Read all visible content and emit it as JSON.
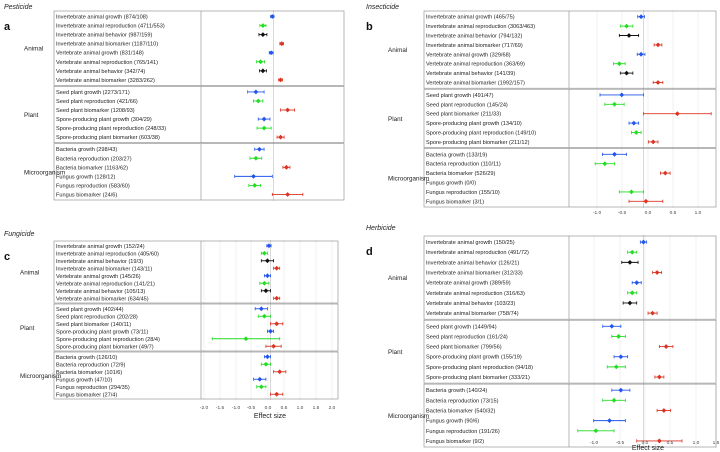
{
  "figure": {
    "xlabel": "Effect size",
    "colors": {
      "negative": "#22dd22",
      "positive": "#dd3322",
      "neutral": "#111111",
      "growth": "#2255ee",
      "frame": "#888888",
      "grid": "#e6e6e6",
      "zero": "#cfcfcf"
    }
  },
  "chart_data": [
    {
      "type": "forest",
      "panel": "a",
      "title": "Pesticide",
      "xlim": [
        -3,
        3
      ],
      "xticks": [],
      "groups": [
        {
          "label": "Animal",
          "items": [
            {
              "label": "Invertebrate animal growth (874/108)",
              "mean": -0.05,
              "lo": -0.12,
              "hi": 0.02,
              "color": "growth"
            },
            {
              "label": "Invertebrate animal reproduction (4711/553)",
              "mean": -0.45,
              "lo": -0.58,
              "hi": -0.32,
              "color": "negative"
            },
            {
              "label": "Invertebrate animal behavior (987/159)",
              "mean": -0.45,
              "lo": -0.62,
              "hi": -0.28,
              "color": "neutral"
            },
            {
              "label": "Invertebrate animal biomarker (1187/110)",
              "mean": 0.35,
              "lo": 0.27,
              "hi": 0.43,
              "color": "positive"
            },
            {
              "label": "Vertebrate animal growth (831/148)",
              "mean": -0.1,
              "lo": -0.18,
              "hi": -0.02,
              "color": "growth"
            },
            {
              "label": "Vertebrate animal reproduction (765/141)",
              "mean": -0.55,
              "lo": -0.72,
              "hi": -0.38,
              "color": "negative"
            },
            {
              "label": "Vertebrate animal behavior (342/74)",
              "mean": -0.45,
              "lo": -0.6,
              "hi": -0.3,
              "color": "neutral"
            },
            {
              "label": "Vertebrate animal biomarker (3283/262)",
              "mean": 0.3,
              "lo": 0.22,
              "hi": 0.38,
              "color": "positive"
            }
          ]
        },
        {
          "label": "Plant",
          "items": [
            {
              "label": "Seed plant growth (2273/171)",
              "mean": -0.75,
              "lo": -1.1,
              "hi": -0.4,
              "color": "growth"
            },
            {
              "label": "Seed plant reproduction (421/66)",
              "mean": -0.65,
              "lo": -0.85,
              "hi": -0.45,
              "color": "negative"
            },
            {
              "label": "Seed plant biomarker (1208/93)",
              "mean": 0.6,
              "lo": 0.3,
              "hi": 0.9,
              "color": "positive"
            },
            {
              "label": "Spore-producing plant growth (304/29)",
              "mean": -0.4,
              "lo": -0.65,
              "hi": -0.15,
              "color": "growth"
            },
            {
              "label": "Spore-producing plant reproduction (248/33)",
              "mean": -0.4,
              "lo": -0.7,
              "hi": -0.1,
              "color": "negative"
            },
            {
              "label": "Spore-producing plant biomarker (603/38)",
              "mean": 0.3,
              "lo": 0.15,
              "hi": 0.45,
              "color": "positive"
            }
          ]
        },
        {
          "label": "Microorganism",
          "items": [
            {
              "label": "Bacteria growth (298/43)",
              "mean": -0.6,
              "lo": -0.8,
              "hi": -0.4,
              "color": "growth"
            },
            {
              "label": "Bacteria reproduction (203/27)",
              "mean": -0.75,
              "lo": -1.0,
              "hi": -0.5,
              "color": "negative"
            },
            {
              "label": "Bacteria biomarker (1163/62)",
              "mean": 0.55,
              "lo": 0.4,
              "hi": 0.7,
              "color": "positive"
            },
            {
              "label": "Fungus growth (128/12)",
              "mean": -0.85,
              "lo": -1.65,
              "hi": -0.05,
              "color": "growth"
            },
            {
              "label": "Fungus reproduction (583/60)",
              "mean": -0.8,
              "lo": -1.05,
              "hi": -0.55,
              "color": "negative"
            },
            {
              "label": "Fungus biomarker (24/6)",
              "mean": 0.6,
              "lo": -0.05,
              "hi": 1.25,
              "color": "positive"
            }
          ]
        }
      ]
    },
    {
      "type": "forest",
      "panel": "b",
      "title": "Insecticide",
      "xlim": [
        -1.5,
        1.5
      ],
      "xticks": [
        "-1.0",
        "-0.5",
        "0.0",
        "0.5",
        "1.0"
      ],
      "groups": [
        {
          "label": "Animal",
          "items": [
            {
              "label": "Invertebrate animal growth (465/75)",
              "mean": -0.05,
              "lo": -0.12,
              "hi": 0.02,
              "color": "growth"
            },
            {
              "label": "Invertebrate animal reproduction (3063/463)",
              "mean": -0.35,
              "lo": -0.48,
              "hi": -0.22,
              "color": "negative"
            },
            {
              "label": "Invertebrate animal behavior (794/132)",
              "mean": -0.3,
              "lo": -0.5,
              "hi": -0.1,
              "color": "neutral"
            },
            {
              "label": "Invertebrate animal biomarker (717/69)",
              "mean": 0.3,
              "lo": 0.22,
              "hi": 0.38,
              "color": "positive"
            },
            {
              "label": "Vertebrate animal growth (329/68)",
              "mean": -0.05,
              "lo": -0.13,
              "hi": 0.03,
              "color": "growth"
            },
            {
              "label": "Vertebrate animal reproduction (363/69)",
              "mean": -0.5,
              "lo": -0.62,
              "hi": -0.38,
              "color": "negative"
            },
            {
              "label": "Vertebrate animal behavior (141/39)",
              "mean": -0.35,
              "lo": -0.48,
              "hi": -0.22,
              "color": "neutral"
            },
            {
              "label": "Vertebrate animal biomarker (1992/157)",
              "mean": 0.3,
              "lo": 0.2,
              "hi": 0.4,
              "color": "positive"
            }
          ]
        },
        {
          "label": "Plant",
          "items": [
            {
              "label": "Seed plant growth (491/47)",
              "mean": -0.45,
              "lo": -0.9,
              "hi": 0.0,
              "color": "growth"
            },
            {
              "label": "Seed plant reproduction (145/24)",
              "mean": -0.6,
              "lo": -0.8,
              "hi": -0.4,
              "color": "negative"
            },
            {
              "label": "Seed plant biomarker (211/33)",
              "mean": 0.7,
              "lo": 0.0,
              "hi": 1.4,
              "color": "positive"
            },
            {
              "label": "Spore-producing plant growth (134/10)",
              "mean": -0.2,
              "lo": -0.3,
              "hi": -0.1,
              "color": "growth"
            },
            {
              "label": "Spore-producing plant reproduction (149/10)",
              "mean": -0.15,
              "lo": -0.25,
              "hi": -0.05,
              "color": "negative"
            },
            {
              "label": "Spore-producing plant biomarker (211/12)",
              "mean": 0.2,
              "lo": 0.1,
              "hi": 0.3,
              "color": "positive"
            }
          ]
        },
        {
          "label": "Microorganism",
          "items": [
            {
              "label": "Bacteria growth (133/19)",
              "mean": -0.6,
              "lo": -0.85,
              "hi": -0.35,
              "color": "growth"
            },
            {
              "label": "Bacteria reproduction (110/11)",
              "mean": -0.8,
              "lo": -1.0,
              "hi": -0.6,
              "color": "negative"
            },
            {
              "label": "Bacteria biomarker (526/29)",
              "mean": 0.45,
              "lo": 0.35,
              "hi": 0.55,
              "color": "positive"
            },
            {
              "label": "Fungus growth (0/0)",
              "mean": null,
              "lo": null,
              "hi": null,
              "color": "growth"
            },
            {
              "label": "Fungus reproduction (155/10)",
              "mean": -0.25,
              "lo": -0.5,
              "hi": 0.0,
              "color": "negative"
            },
            {
              "label": "Fungus biomarker (3/1)",
              "mean": 0.05,
              "lo": -0.3,
              "hi": 0.4,
              "color": "positive"
            }
          ]
        }
      ]
    },
    {
      "type": "forest",
      "panel": "c",
      "title": "Fungicide",
      "xlim": [
        -2.2,
        2.2
      ],
      "xticks": [
        "-2.0",
        "-1.5",
        "-1.0",
        "-0.5",
        "0.0",
        "0.5",
        "1.0",
        "1.5",
        "2.0"
      ],
      "groups": [
        {
          "label": "Animal",
          "items": [
            {
              "label": "Invertebrate animal growth (152/24)",
              "mean": -0.05,
              "lo": -0.12,
              "hi": 0.02,
              "color": "growth"
            },
            {
              "label": "Invertebrate animal reproduction (405/60)",
              "mean": -0.2,
              "lo": -0.3,
              "hi": -0.1,
              "color": "negative"
            },
            {
              "label": "Invertebrate animal behavior (19/3)",
              "mean": -0.1,
              "lo": -0.3,
              "hi": 0.1,
              "color": "neutral"
            },
            {
              "label": "Invertebrate animal biomarker (143/11)",
              "mean": 0.2,
              "lo": 0.1,
              "hi": 0.3,
              "color": "positive"
            },
            {
              "label": "Vertebrate animal growth (145/26)",
              "mean": -0.1,
              "lo": -0.2,
              "hi": 0.0,
              "color": "growth"
            },
            {
              "label": "Vertebrate animal reproduction (141/21)",
              "mean": -0.2,
              "lo": -0.35,
              "hi": -0.05,
              "color": "negative"
            },
            {
              "label": "Vertebrate animal behavior (105/13)",
              "mean": -0.15,
              "lo": -0.3,
              "hi": 0.0,
              "color": "neutral"
            },
            {
              "label": "Vertebrate animal biomarker (634/45)",
              "mean": 0.2,
              "lo": 0.1,
              "hi": 0.3,
              "color": "positive"
            }
          ]
        },
        {
          "label": "Plant",
          "items": [
            {
              "label": "Seed plant growth (402/44)",
              "mean": -0.3,
              "lo": -0.5,
              "hi": -0.1,
              "color": "growth"
            },
            {
              "label": "Seed plant reproduction (202/28)",
              "mean": -0.2,
              "lo": -0.4,
              "hi": 0.0,
              "color": "negative"
            },
            {
              "label": "Seed plant biomarker (140/11)",
              "mean": 0.2,
              "lo": 0.0,
              "hi": 0.4,
              "color": "positive"
            },
            {
              "label": "Spore-producing plant growth (73/11)",
              "mean": 0.0,
              "lo": -0.1,
              "hi": 0.1,
              "color": "growth"
            },
            {
              "label": "Spore-producing plant reproduction (28/4)",
              "mean": -0.8,
              "lo": -1.9,
              "hi": 0.3,
              "color": "negative"
            },
            {
              "label": "Spore-producing plant biomarker (49/7)",
              "mean": 0.1,
              "lo": -0.15,
              "hi": 0.35,
              "color": "positive"
            }
          ]
        },
        {
          "label": "Microorganism",
          "items": [
            {
              "label": "Bacteria growth (126/10)",
              "mean": -0.1,
              "lo": -0.2,
              "hi": 0.0,
              "color": "growth"
            },
            {
              "label": "Bacteria reproduction (72/9)",
              "mean": -0.15,
              "lo": -0.3,
              "hi": 0.0,
              "color": "negative"
            },
            {
              "label": "Bacteria biomarker (101/6)",
              "mean": 0.3,
              "lo": 0.1,
              "hi": 0.5,
              "color": "positive"
            },
            {
              "label": "Fungus growth (47/10)",
              "mean": -0.35,
              "lo": -0.55,
              "hi": -0.15,
              "color": "growth"
            },
            {
              "label": "Fungus reproduction (294/35)",
              "mean": -0.3,
              "lo": -0.45,
              "hi": -0.15,
              "color": "negative"
            },
            {
              "label": "Fungus biomarker (27/4)",
              "mean": 0.2,
              "lo": 0.0,
              "hi": 0.4,
              "color": "positive"
            }
          ]
        }
      ]
    },
    {
      "type": "forest",
      "panel": "d",
      "title": "Herbicide",
      "xlim": [
        -1.6,
        1.6
      ],
      "xticks": [
        "-1.0",
        "-0.5",
        "0.0",
        "0.5",
        "1.0",
        "1.5"
      ],
      "groups": [
        {
          "label": "Animal",
          "items": [
            {
              "label": "Invertebrate animal growth (150/25)",
              "mean": 0.0,
              "lo": -0.07,
              "hi": 0.07,
              "color": "growth"
            },
            {
              "label": "Invertebrate animal reproduction (491/72)",
              "mean": -0.25,
              "lo": -0.35,
              "hi": -0.15,
              "color": "negative"
            },
            {
              "label": "Invertebrate animal behavior (126/21)",
              "mean": -0.3,
              "lo": -0.48,
              "hi": -0.12,
              "color": "neutral"
            },
            {
              "label": "Invertebrate animal biomarker (312/33)",
              "mean": 0.3,
              "lo": 0.2,
              "hi": 0.4,
              "color": "positive"
            },
            {
              "label": "Vertebrate animal growth (389/59)",
              "mean": -0.15,
              "lo": -0.25,
              "hi": -0.05,
              "color": "growth"
            },
            {
              "label": "Vertebrate animal reproduction (316/63)",
              "mean": -0.25,
              "lo": -0.35,
              "hi": -0.15,
              "color": "negative"
            },
            {
              "label": "Vertebrate animal behavior (103/23)",
              "mean": -0.3,
              "lo": -0.45,
              "hi": -0.15,
              "color": "neutral"
            },
            {
              "label": "Vertebrate animal biomarker (758/74)",
              "mean": 0.2,
              "lo": 0.1,
              "hi": 0.3,
              "color": "positive"
            }
          ]
        },
        {
          "label": "Plant",
          "items": [
            {
              "label": "Seed plant growth (1449/94)",
              "mean": -0.7,
              "lo": -0.9,
              "hi": -0.5,
              "color": "growth"
            },
            {
              "label": "Seed plant reproduction (161/24)",
              "mean": -0.55,
              "lo": -0.7,
              "hi": -0.4,
              "color": "negative"
            },
            {
              "label": "Seed plant biomarker (799/56)",
              "mean": 0.5,
              "lo": 0.35,
              "hi": 0.65,
              "color": "positive"
            },
            {
              "label": "Spore-producing plant growth (155/19)",
              "mean": -0.5,
              "lo": -0.65,
              "hi": -0.35,
              "color": "growth"
            },
            {
              "label": "Spore-producing plant reproduction (94/18)",
              "mean": -0.6,
              "lo": -0.8,
              "hi": -0.4,
              "color": "negative"
            },
            {
              "label": "Spore-producing plant biomarker (333/21)",
              "mean": 0.35,
              "lo": 0.25,
              "hi": 0.45,
              "color": "positive"
            }
          ]
        },
        {
          "label": "Microorganism",
          "items": [
            {
              "label": "Bacteria growth (140/24)",
              "mean": -0.5,
              "lo": -0.7,
              "hi": -0.3,
              "color": "growth"
            },
            {
              "label": "Bacteria reproduction (73/15)",
              "mean": -0.65,
              "lo": -0.9,
              "hi": -0.4,
              "color": "negative"
            },
            {
              "label": "Bacteria biomarker (540/32)",
              "mean": 0.45,
              "lo": 0.3,
              "hi": 0.6,
              "color": "positive"
            },
            {
              "label": "Fungus growth (90/6)",
              "mean": -0.75,
              "lo": -1.1,
              "hi": -0.4,
              "color": "growth"
            },
            {
              "label": "Fungus reproduction (191/26)",
              "mean": -1.05,
              "lo": -1.45,
              "hi": -0.65,
              "color": "negative"
            },
            {
              "label": "Fungus biomarker (9/2)",
              "mean": 0.35,
              "lo": -0.15,
              "hi": 0.85,
              "color": "positive"
            }
          ]
        }
      ]
    }
  ]
}
